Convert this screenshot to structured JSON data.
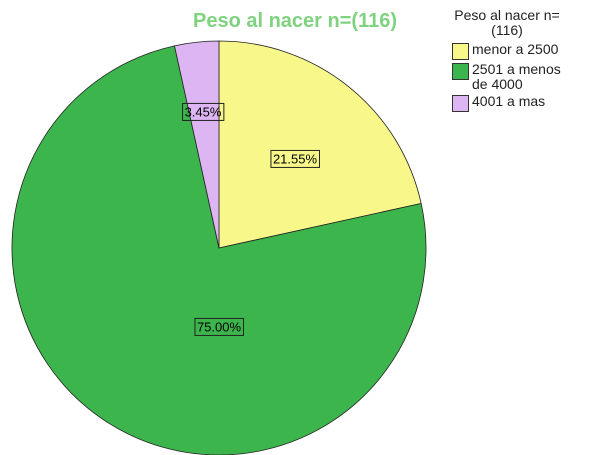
{
  "chart_data": {
    "type": "pie",
    "title": "Peso al nacer n=(116)",
    "legend_title": "Peso al nacer n=(116)",
    "categories": [
      "menor a 2500",
      "2501 a menos de 4000",
      "4001 a mas"
    ],
    "values": [
      21.55,
      75.0,
      3.45
    ],
    "value_labels": [
      "21.55%",
      "75.00%",
      "3.45%"
    ],
    "colors": [
      "#f8f88a",
      "#3cb54c",
      "#dcb5f2"
    ],
    "legend": "right"
  }
}
